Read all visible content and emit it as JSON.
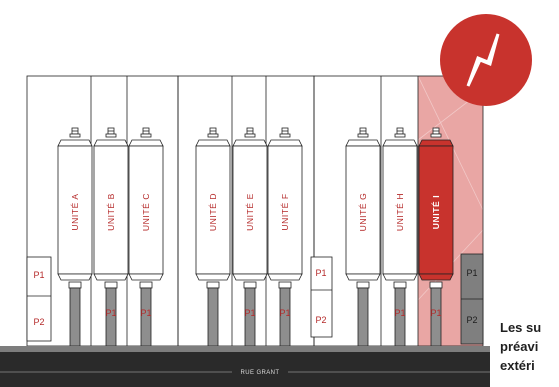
{
  "units": [
    {
      "id": "A",
      "label": "UNITÉ A",
      "selected": false
    },
    {
      "id": "B",
      "label": "UNITÉ B",
      "selected": false
    },
    {
      "id": "C",
      "label": "UNITÉ C",
      "selected": false
    },
    {
      "id": "D",
      "label": "UNITÉ D",
      "selected": false
    },
    {
      "id": "E",
      "label": "UNITÉ E",
      "selected": false
    },
    {
      "id": "F",
      "label": "UNITÉ F",
      "selected": false
    },
    {
      "id": "G",
      "label": "UNITÉ G",
      "selected": false
    },
    {
      "id": "H",
      "label": "UNITÉ H",
      "selected": false
    },
    {
      "id": "I",
      "label": "UNITÉ I",
      "selected": true
    }
  ],
  "parking": {
    "p1": "P1",
    "p2": "P2"
  },
  "street": {
    "label": "RUE GRANT"
  },
  "caption": {
    "line1": "Les su",
    "line2": "préavi",
    "line3": "extéri"
  },
  "colors": {
    "accent": "#c8332d",
    "highlight": "#e9a6a4",
    "selected_unit": "#c8332d",
    "driveway": "#8e8e8e"
  },
  "icons": {
    "badge": "lightning-icon"
  }
}
